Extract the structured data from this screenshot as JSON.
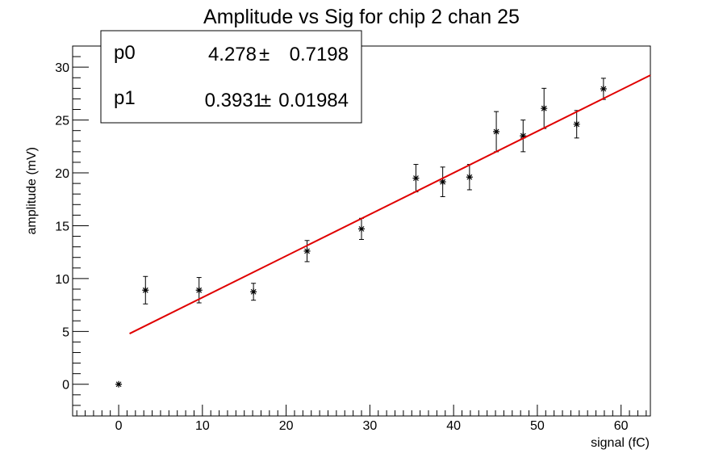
{
  "chart_data": {
    "type": "scatter",
    "title": "Amplitude vs Sig for chip 2 chan 25",
    "xlabel": "signal (fC)",
    "ylabel": "amplitude (mV)",
    "xlim": [
      -5.5,
      63.5
    ],
    "ylim": [
      -3,
      32
    ],
    "x_ticks": [
      0,
      10,
      20,
      30,
      40,
      50,
      60
    ],
    "y_ticks": [
      0,
      5,
      10,
      15,
      20,
      25,
      30
    ],
    "grid": false,
    "points": [
      {
        "x": 0,
        "y": 0.0,
        "err": 0
      },
      {
        "x": 3.2,
        "y": 8.9,
        "err": 1.3
      },
      {
        "x": 9.6,
        "y": 8.9,
        "err": 1.2
      },
      {
        "x": 16.1,
        "y": 8.75,
        "err": 0.8
      },
      {
        "x": 22.5,
        "y": 12.6,
        "err": 1.0
      },
      {
        "x": 29.0,
        "y": 14.7,
        "err": 1.0
      },
      {
        "x": 35.5,
        "y": 19.5,
        "err": 1.3
      },
      {
        "x": 38.7,
        "y": 19.15,
        "err": 1.4
      },
      {
        "x": 41.9,
        "y": 19.6,
        "err": 1.2
      },
      {
        "x": 45.1,
        "y": 23.9,
        "err": 1.9
      },
      {
        "x": 48.3,
        "y": 23.5,
        "err": 1.5
      },
      {
        "x": 50.8,
        "y": 26.1,
        "err": 1.9
      },
      {
        "x": 54.7,
        "y": 24.6,
        "err": 1.3
      },
      {
        "x": 57.9,
        "y": 27.95,
        "err": 1.0
      }
    ],
    "fit": {
      "color": "#e00000",
      "p0": 4.278,
      "p1": 0.3931,
      "x_range": [
        1.3,
        63.5
      ]
    },
    "stats": {
      "rows": [
        {
          "name": "p0",
          "value": "4.278",
          "pm": "±",
          "error": "0.7198"
        },
        {
          "name": "p1",
          "value": "0.3931",
          "pm": "±",
          "error": "0.01984"
        }
      ]
    }
  }
}
